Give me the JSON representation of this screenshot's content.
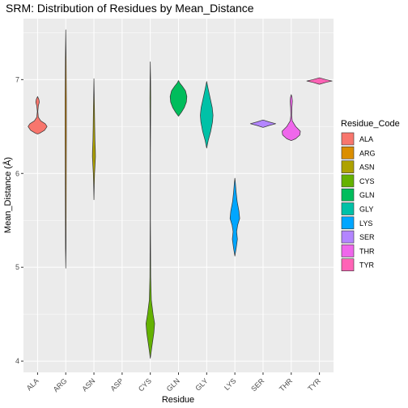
{
  "chart_data": {
    "type": "violin",
    "title": "SRM: Distribution of Residues by Mean_Distance",
    "xlabel": "Residue",
    "ylabel": "Mean_Distance (Å)",
    "ylim": [
      3.88,
      7.65
    ],
    "y_ticks": [
      4,
      5,
      6,
      7
    ],
    "categories": [
      "ALA",
      "ARG",
      "ASN",
      "ASP",
      "CYS",
      "GLN",
      "GLY",
      "LYS",
      "SER",
      "THR",
      "TYR"
    ],
    "legend": {
      "title": "Residue_Code",
      "position": "right",
      "entries": [
        "ALA",
        "ARG",
        "ASN",
        "CYS",
        "GLN",
        "GLY",
        "LYS",
        "SER",
        "THR",
        "TYR"
      ]
    },
    "colors": {
      "ALA": "#F8766D",
      "ARG": "#DB8E00",
      "ASN": "#AEA200",
      "CYS": "#64B200",
      "GLN": "#00BD5C",
      "GLY": "#00C1A7",
      "LYS": "#00A6FF",
      "SER": "#B385FF",
      "THR": "#EF67EB",
      "TYR": "#FF63B6"
    },
    "grid": true,
    "panel_background": "#EBEBEB",
    "series": [
      {
        "name": "ALA",
        "x": "ALA",
        "min": 6.42,
        "max": 6.82,
        "profile": [
          [
            6.42,
            0.0
          ],
          [
            6.43,
            0.18
          ],
          [
            6.46,
            0.55
          ],
          [
            6.5,
            0.75
          ],
          [
            6.53,
            0.6
          ],
          [
            6.56,
            0.25
          ],
          [
            6.6,
            0.06
          ],
          [
            6.66,
            0.02
          ],
          [
            6.72,
            0.06
          ],
          [
            6.76,
            0.14
          ],
          [
            6.79,
            0.1
          ],
          [
            6.82,
            0.0
          ]
        ]
      },
      {
        "name": "ARG",
        "x": "ARG",
        "min": 4.99,
        "max": 7.53,
        "profile": [
          [
            4.99,
            0.0
          ],
          [
            5.2,
            0.02
          ],
          [
            5.6,
            0.03
          ],
          [
            6.0,
            0.04
          ],
          [
            6.4,
            0.05
          ],
          [
            6.8,
            0.05
          ],
          [
            7.2,
            0.03
          ],
          [
            7.53,
            0.0
          ]
        ]
      },
      {
        "name": "ASN",
        "x": "ASN",
        "min": 5.72,
        "max": 7.01,
        "profile": [
          [
            5.72,
            0.0
          ],
          [
            5.85,
            0.02
          ],
          [
            6.0,
            0.05
          ],
          [
            6.1,
            0.09
          ],
          [
            6.18,
            0.12
          ],
          [
            6.25,
            0.11
          ],
          [
            6.35,
            0.08
          ],
          [
            6.5,
            0.06
          ],
          [
            6.7,
            0.04
          ],
          [
            6.85,
            0.02
          ],
          [
            7.01,
            0.0
          ]
        ]
      },
      {
        "name": "CYS",
        "x": "CYS",
        "min": 4.03,
        "max": 7.19,
        "profile": [
          [
            4.03,
            0.0
          ],
          [
            4.15,
            0.12
          ],
          [
            4.3,
            0.28
          ],
          [
            4.4,
            0.34
          ],
          [
            4.5,
            0.22
          ],
          [
            4.65,
            0.08
          ],
          [
            4.9,
            0.03
          ],
          [
            5.5,
            0.01
          ],
          [
            6.2,
            0.01
          ],
          [
            6.8,
            0.03
          ],
          [
            7.0,
            0.02
          ],
          [
            7.19,
            0.0
          ]
        ]
      },
      {
        "name": "GLN",
        "x": "GLN",
        "min": 6.61,
        "max": 6.99,
        "profile": [
          [
            6.61,
            0.0
          ],
          [
            6.65,
            0.22
          ],
          [
            6.7,
            0.45
          ],
          [
            6.76,
            0.62
          ],
          [
            6.82,
            0.66
          ],
          [
            6.88,
            0.55
          ],
          [
            6.93,
            0.3
          ],
          [
            6.96,
            0.12
          ],
          [
            6.99,
            0.0
          ]
        ]
      },
      {
        "name": "GLY",
        "x": "GLY",
        "min": 6.27,
        "max": 6.98,
        "profile": [
          [
            6.27,
            0.0
          ],
          [
            6.35,
            0.12
          ],
          [
            6.45,
            0.32
          ],
          [
            6.55,
            0.46
          ],
          [
            6.62,
            0.5
          ],
          [
            6.7,
            0.44
          ],
          [
            6.8,
            0.28
          ],
          [
            6.9,
            0.12
          ],
          [
            6.98,
            0.0
          ]
        ]
      },
      {
        "name": "LYS",
        "x": "LYS",
        "min": 5.12,
        "max": 5.95,
        "profile": [
          [
            5.12,
            0.0
          ],
          [
            5.2,
            0.1
          ],
          [
            5.3,
            0.2
          ],
          [
            5.38,
            0.14
          ],
          [
            5.45,
            0.22
          ],
          [
            5.52,
            0.38
          ],
          [
            5.6,
            0.32
          ],
          [
            5.7,
            0.18
          ],
          [
            5.8,
            0.1
          ],
          [
            5.9,
            0.04
          ],
          [
            5.95,
            0.0
          ]
        ]
      },
      {
        "name": "SER",
        "x": "SER",
        "min": 6.49,
        "max": 6.57,
        "profile": [
          [
            6.49,
            0.0
          ],
          [
            6.51,
            0.45
          ],
          [
            6.53,
            1.0
          ],
          [
            6.55,
            0.45
          ],
          [
            6.57,
            0.0
          ]
        ]
      },
      {
        "name": "THR",
        "x": "THR",
        "min": 6.35,
        "max": 6.84,
        "profile": [
          [
            6.35,
            0.0
          ],
          [
            6.37,
            0.35
          ],
          [
            6.41,
            0.68
          ],
          [
            6.45,
            0.72
          ],
          [
            6.5,
            0.35
          ],
          [
            6.56,
            0.08
          ],
          [
            6.62,
            0.03
          ],
          [
            6.7,
            0.05
          ],
          [
            6.77,
            0.09
          ],
          [
            6.81,
            0.06
          ],
          [
            6.84,
            0.0
          ]
        ]
      },
      {
        "name": "TYR",
        "x": "TYR",
        "min": 6.95,
        "max": 7.02,
        "profile": [
          [
            6.95,
            0.0
          ],
          [
            6.97,
            0.5
          ],
          [
            6.985,
            1.0
          ],
          [
            7.0,
            0.5
          ],
          [
            7.02,
            0.0
          ]
        ]
      }
    ]
  }
}
